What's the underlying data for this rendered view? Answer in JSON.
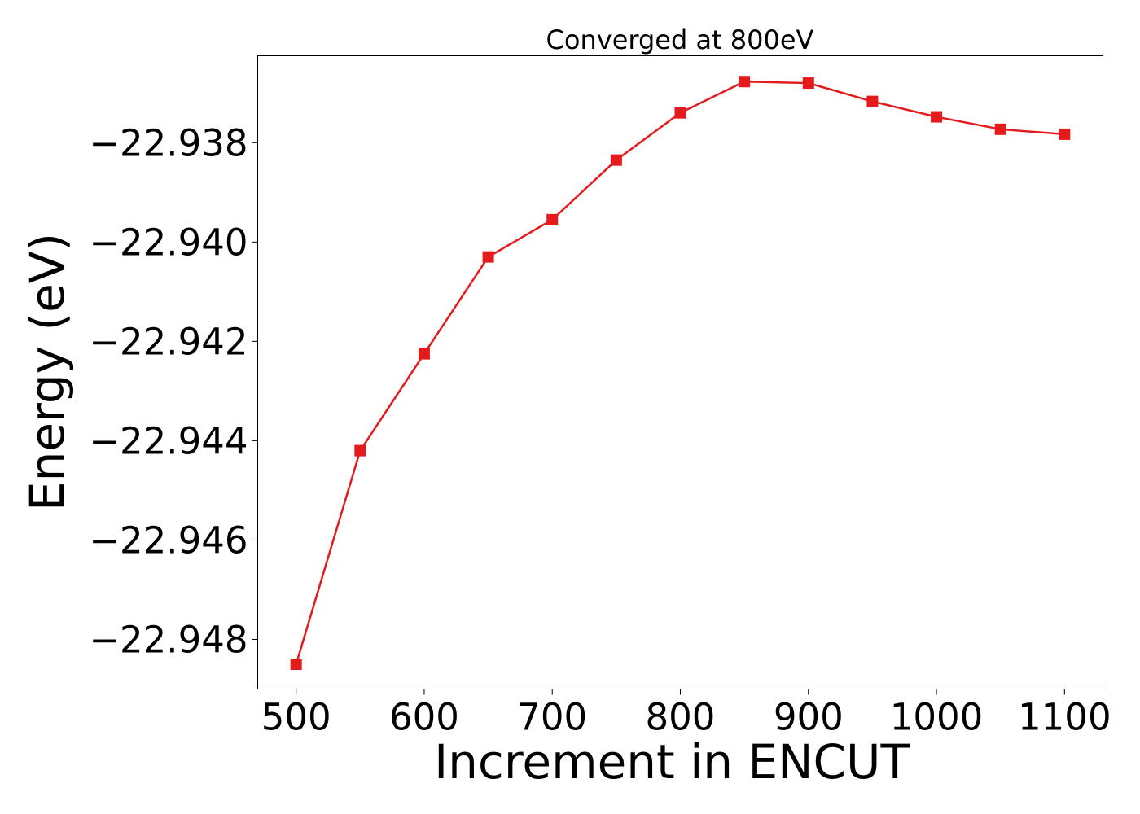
{
  "chart_data": {
    "type": "line",
    "title": "Converged at 800eV",
    "xlabel": "Increment in ENCUT",
    "ylabel": "Energy (eV)",
    "x": [
      500,
      550,
      600,
      650,
      700,
      750,
      800,
      850,
      900,
      950,
      1000,
      1050,
      1100
    ],
    "series": [
      {
        "values": [
          -22.9485,
          -22.9442,
          -22.94225,
          -22.9403,
          -22.93955,
          -22.93835,
          -22.9374,
          -22.93677,
          -22.9368,
          -22.93717,
          -22.93748,
          -22.93773,
          -22.93783
        ],
        "color": "#e41a1c",
        "marker": "square"
      }
    ],
    "xticks": [
      500,
      600,
      700,
      800,
      900,
      1000,
      1100
    ],
    "xtick_labels": [
      "500",
      "600",
      "700",
      "800",
      "900",
      "1000",
      "1100"
    ],
    "yticks": [
      -22.948,
      -22.946,
      -22.944,
      -22.942,
      -22.94,
      -22.938
    ],
    "ytick_labels": [
      "−22.948",
      "−22.946",
      "−22.944",
      "−22.942",
      "−22.940",
      "−22.938"
    ],
    "xlim": [
      470,
      1130
    ],
    "ylim": [
      -22.949,
      -22.93625
    ],
    "grid": false,
    "legend": false
  }
}
